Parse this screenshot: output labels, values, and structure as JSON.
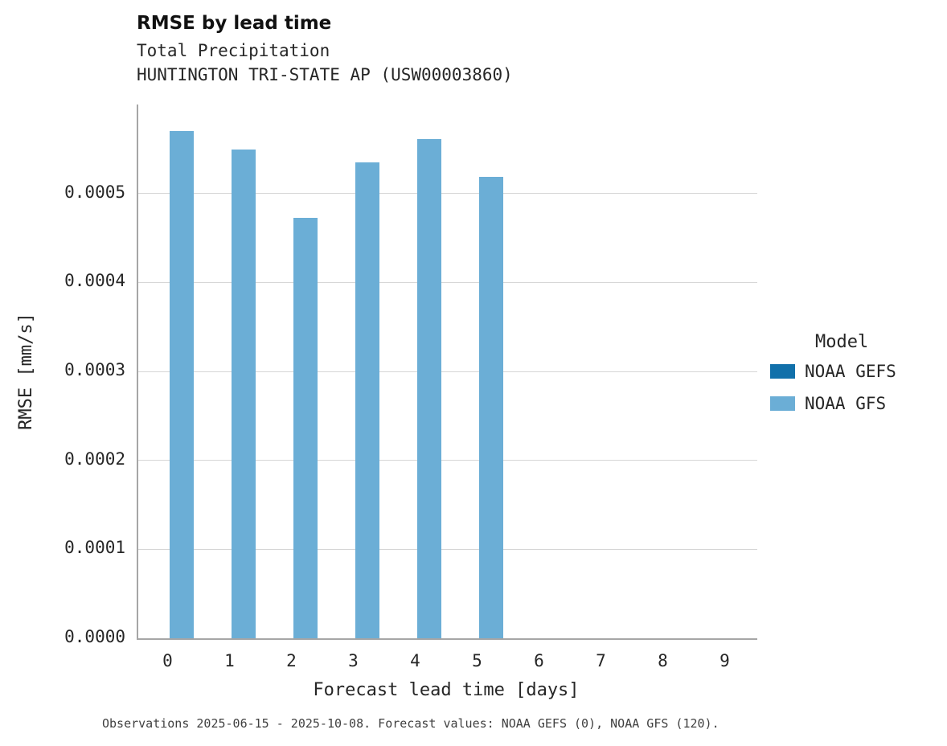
{
  "chart_data": {
    "type": "bar",
    "title": "RMSE by lead time",
    "subtitle": [
      "Total Precipitation",
      "HUNTINGTON TRI-STATE AP (USW00003860)"
    ],
    "xlabel": "Forecast lead time [days]",
    "ylabel": "RMSE [mm/s]",
    "categories": [
      "0",
      "1",
      "2",
      "3",
      "4",
      "5",
      "6",
      "7",
      "8",
      "9"
    ],
    "series": [
      {
        "name": "NOAA GEFS",
        "color": "#1170aa",
        "values": [
          null,
          null,
          null,
          null,
          null,
          null,
          null,
          null,
          null,
          null
        ]
      },
      {
        "name": "NOAA GFS",
        "color": "#6baed6",
        "values": [
          0.00057,
          0.000549,
          0.000473,
          0.000535,
          0.000561,
          0.000519,
          null,
          null,
          null,
          null
        ]
      }
    ],
    "ylim": [
      0,
      0.0006
    ],
    "yticks": [
      "0.0000",
      "0.0001",
      "0.0002",
      "0.0003",
      "0.0004",
      "0.0005"
    ],
    "grid": "horizontal",
    "legend_title": "Model",
    "legend_position": "right",
    "caption": "Observations 2025-06-15 - 2025-10-08. Forecast values: NOAA GEFS (0), NOAA GFS (120)."
  }
}
